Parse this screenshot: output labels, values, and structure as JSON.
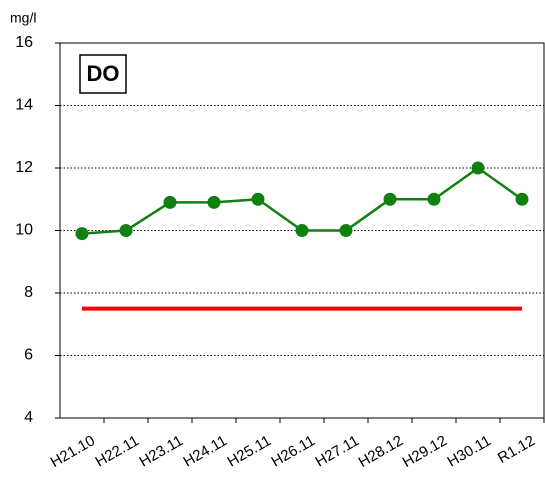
{
  "chart_data": {
    "type": "line",
    "title": "DO",
    "y_axis_label": "mg/l",
    "categories": [
      "H21.10",
      "H22.11",
      "H23.11",
      "H24.11",
      "H25.11",
      "H26.11",
      "H27.11",
      "H28.12",
      "H29.12",
      "H30.11",
      "R1.12"
    ],
    "series": [
      {
        "color": "#108010",
        "values": [
          9.9,
          10,
          10.9,
          10.9,
          11,
          10,
          10,
          11,
          11,
          12,
          11
        ]
      }
    ],
    "reference_line": {
      "value": 7.5,
      "color": "#ff0000"
    },
    "ylim": [
      4,
      16
    ],
    "yticks": [
      4,
      6,
      8,
      10,
      12,
      14,
      16
    ],
    "grid": true
  }
}
